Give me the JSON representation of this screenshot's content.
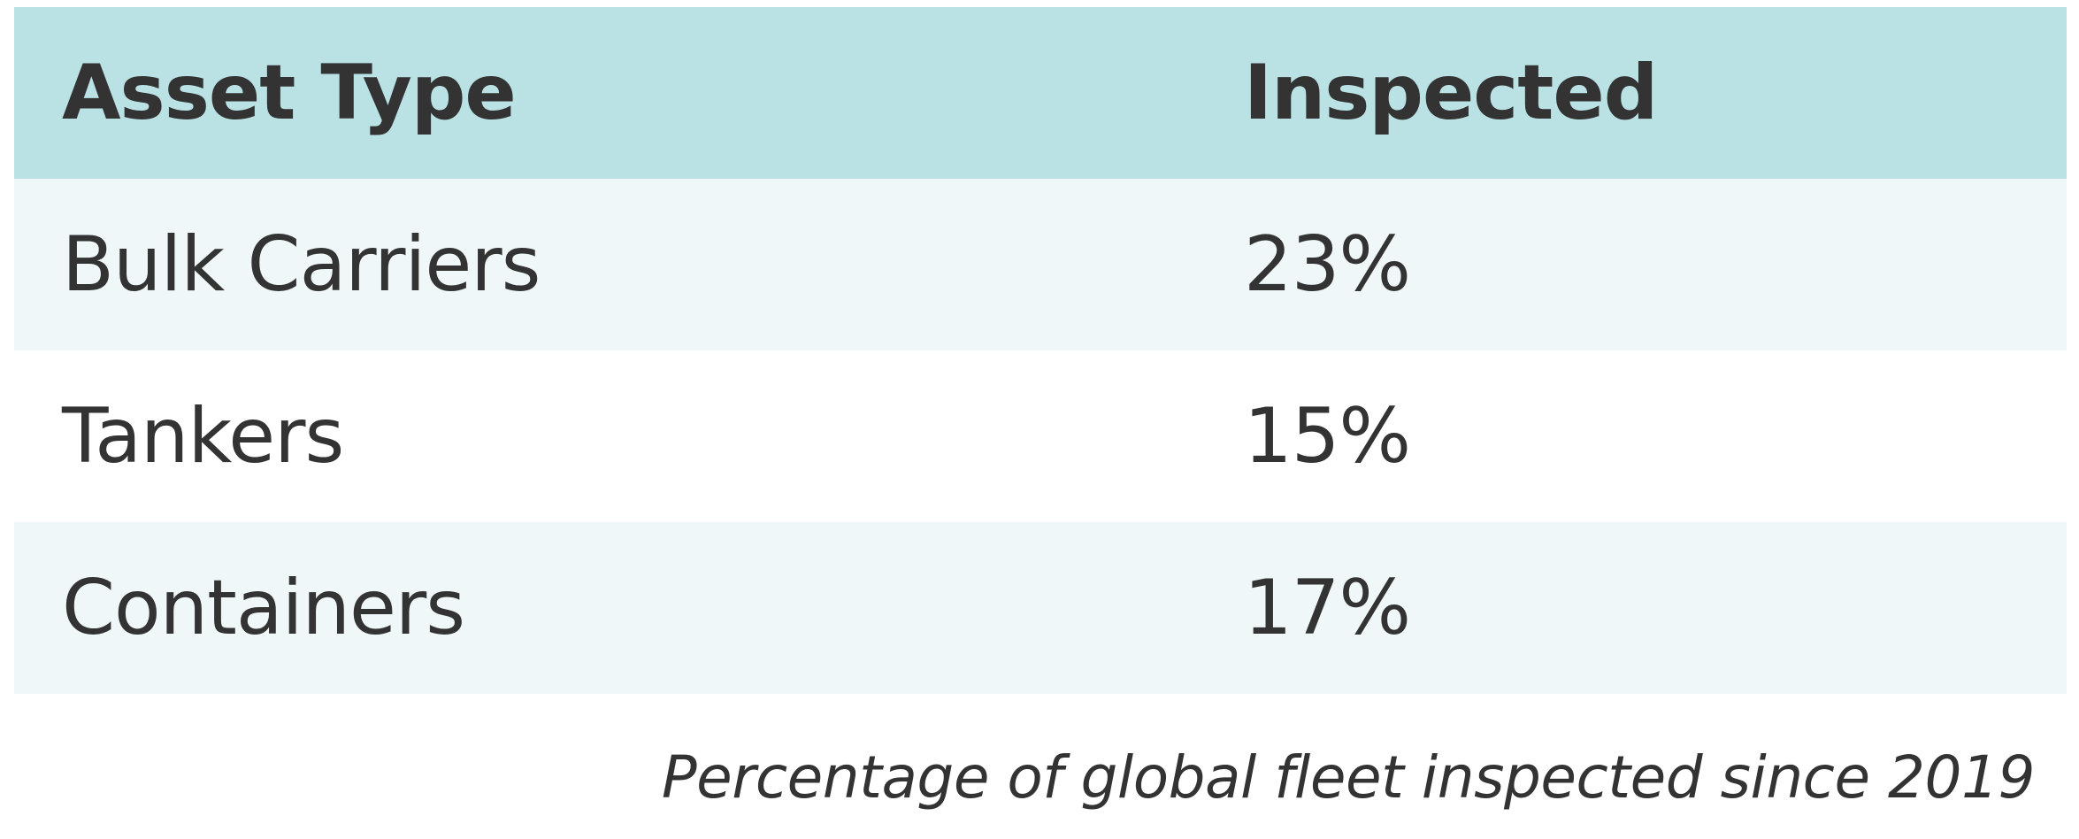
{
  "table": {
    "headers": [
      "Asset Type",
      "Inspected"
    ],
    "rows": [
      [
        "Bulk Carriers",
        "23%"
      ],
      [
        "Tankers",
        "15%"
      ],
      [
        "Containers",
        "17%"
      ]
    ]
  },
  "caption": "Percentage of global fleet inspected since 2019",
  "colors": {
    "header_background": "#bae2e5",
    "shaded_row_background": "#eff7f9",
    "plain_row_background": "#ffffff",
    "text": "#333333"
  }
}
